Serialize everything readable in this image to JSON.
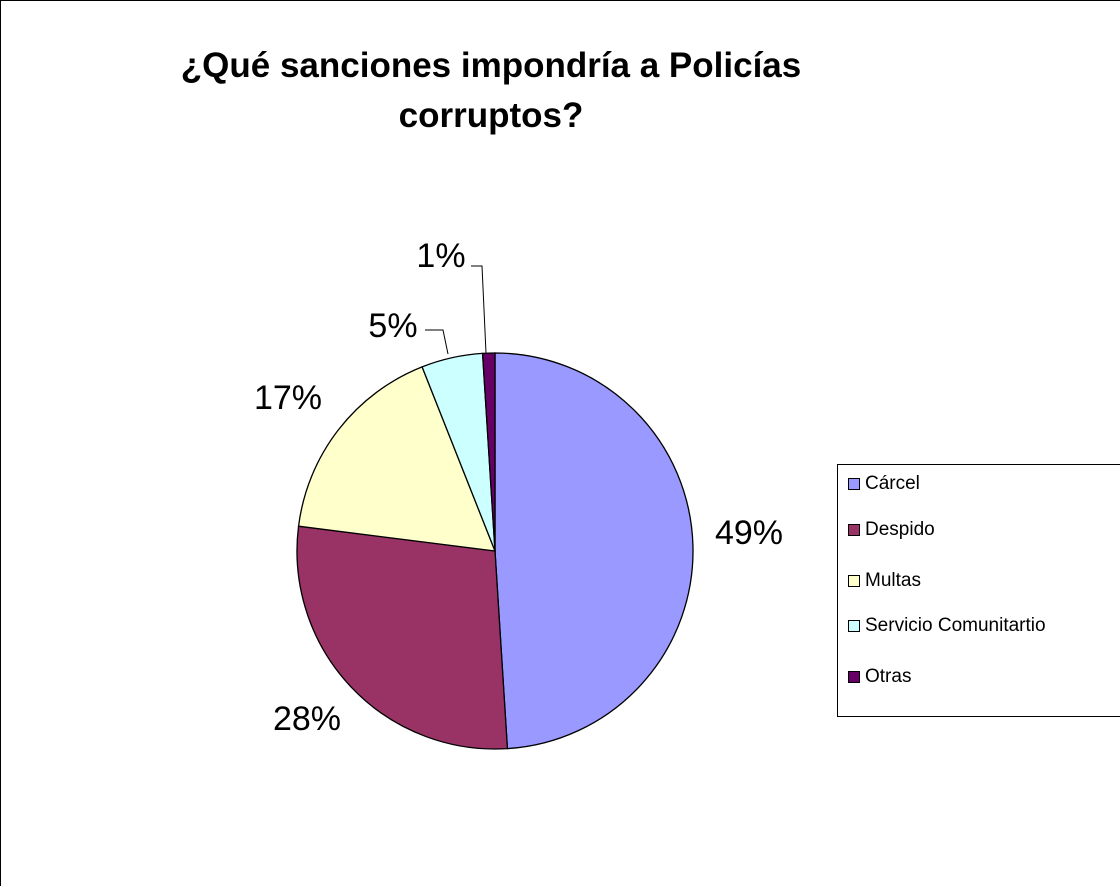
{
  "chart_data": {
    "type": "pie",
    "title": "¿Qué sanciones impondría a Policías corruptos?",
    "categories": [
      "Cárcel",
      "Despido",
      "Multas",
      "Servicio Comunitartio",
      "Otras"
    ],
    "values": [
      49,
      28,
      17,
      5,
      1
    ],
    "data_labels": [
      "49%",
      "28%",
      "17%",
      "5%",
      "1%"
    ],
    "colors": [
      "#9999FF",
      "#993366",
      "#FFFFCC",
      "#CCFFFF",
      "#660066"
    ],
    "legend_position": "right",
    "start_angle": "12 o'clock, clockwise"
  }
}
